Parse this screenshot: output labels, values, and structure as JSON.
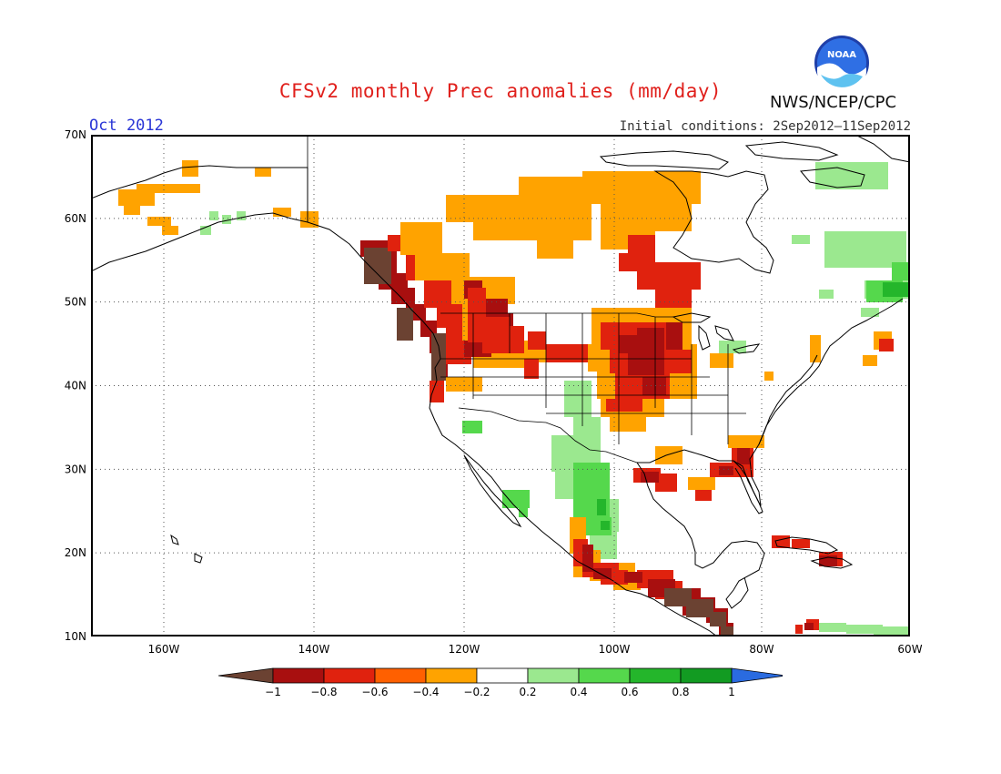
{
  "title": "CFSv2 monthly Prec anomalies (mm/day)",
  "valid_month": "Oct 2012",
  "initial_conditions": "Initial conditions: 2Sep2012—11Sep2012",
  "agency": "NWS/NCEP/CPC",
  "logo_text": "NOAA",
  "axes": {
    "lat_labels": [
      "70N",
      "60N",
      "50N",
      "40N",
      "30N",
      "20N",
      "10N"
    ],
    "lon_labels": [
      "160W",
      "140W",
      "120W",
      "100W",
      "80W",
      "60W"
    ]
  },
  "legend": {
    "labels": [
      "−1",
      "−0.8",
      "−0.6",
      "−0.4",
      "−0.2",
      "0.2",
      "0.4",
      "0.6",
      "0.8",
      "1"
    ],
    "colors": [
      "#6b4232",
      "#a80f0f",
      "#e0220e",
      "#ff6000",
      "#ffa300",
      "#ffffff",
      "#9be88f",
      "#55d84c",
      "#24b62b",
      "#129b22",
      "#2a6be0"
    ]
  },
  "map_colors": {
    "dry_extreme": "#6b4232",
    "dry_strong": "#a80f0f",
    "dry_moderate": "#e0220e",
    "dry_weak": "#ff6000",
    "dry_slight": "#ffa300",
    "wet_slight": "#9be88f",
    "wet_weak": "#55d84c",
    "wet_moderate": "#24b62b"
  }
}
